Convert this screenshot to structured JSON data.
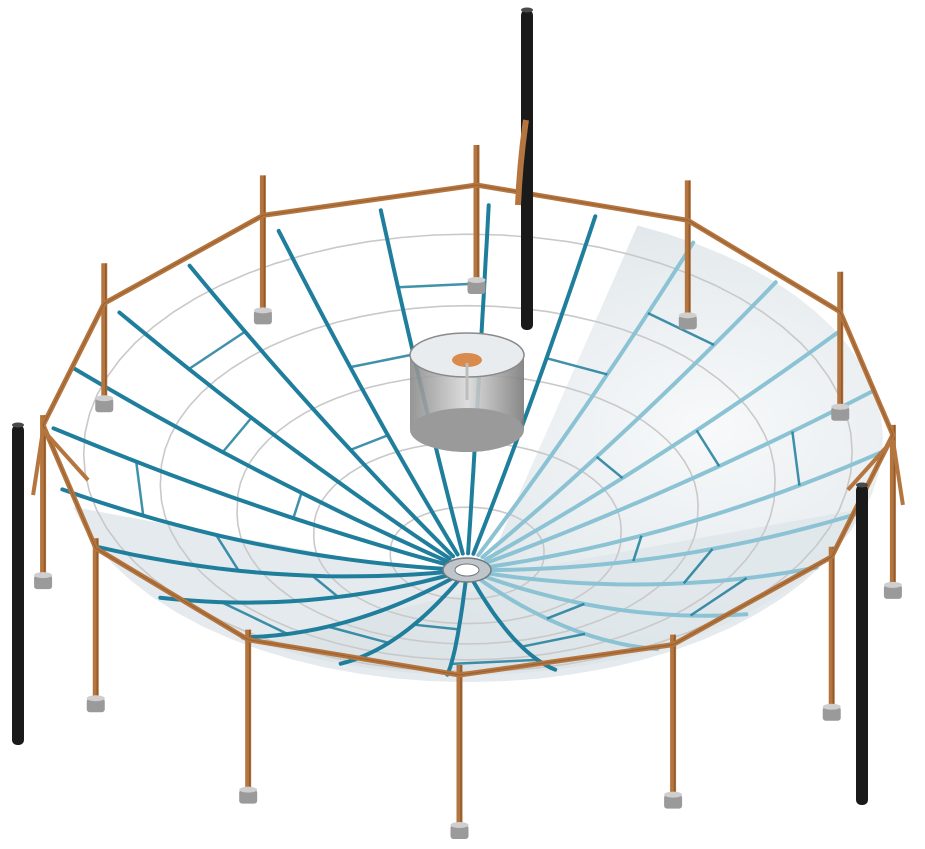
{
  "scene": {
    "subject": "parabolic-dish-reflector-3d-render",
    "colors": {
      "rib": "#1f7e9c",
      "rib_light": "#8cc3d4",
      "ring": "#c9c9c9",
      "frame": "#b5753f",
      "frame_dark": "#7a4a22",
      "post": "#1a1a1a",
      "foot": "#9a9a9a",
      "membrane": "#e6ecef",
      "receiver": "#8e8e8e",
      "receiver_plate": "#d98a4d"
    },
    "counts": {
      "radial_ribs": 24,
      "concentric_rings": 5,
      "frame_sides": 12,
      "support_legs": 12,
      "tall_posts": 3
    }
  }
}
